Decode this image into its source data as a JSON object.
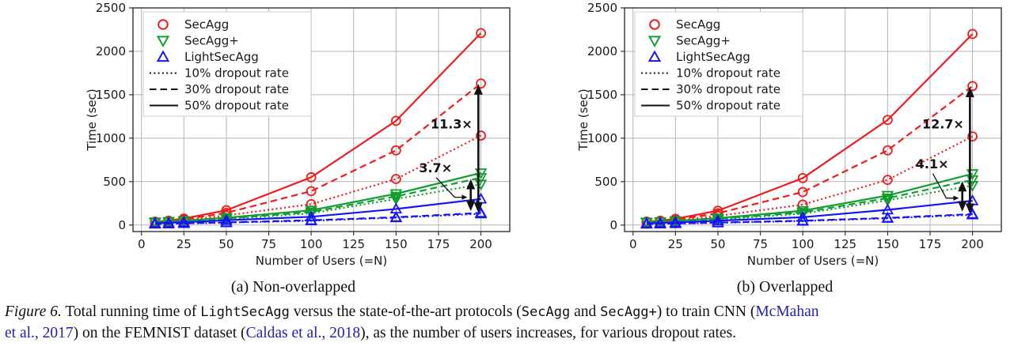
{
  "colors": {
    "red": "#ee1c1c",
    "green": "#109f2e",
    "blue": "#1414f5",
    "citation": "#2222aa",
    "grid": "#b3b3b3",
    "spine": "#333333",
    "annotation": "#111111"
  },
  "figure": {
    "subcaptions": [
      "(a)  Non-overlapped",
      "(b)  Overlapped"
    ],
    "caption_segments": [
      {
        "t": "Figure 6.",
        "s": "italic"
      },
      {
        "t": " Total running time of ",
        "s": "n"
      },
      {
        "t": "LightSecAgg",
        "s": "mono"
      },
      {
        "t": " versus the state-of-the-art protocols (",
        "s": "n"
      },
      {
        "t": "SecAgg",
        "s": "mono"
      },
      {
        "t": " and ",
        "s": "n"
      },
      {
        "t": "SecAgg+",
        "s": "mono"
      },
      {
        "t": ") to train CNN (",
        "s": "n"
      },
      {
        "t": "McMahan",
        "s": "cite"
      },
      {
        "t": "",
        "s": "br"
      },
      {
        "t": "et al., 2017",
        "s": "cite"
      },
      {
        "t": ") on the FEMNIST dataset (",
        "s": "n"
      },
      {
        "t": "Caldas et al., 2018",
        "s": "cite"
      },
      {
        "t": "), as the number of users increases, for various dropout rates.",
        "s": "n"
      }
    ]
  },
  "chart_data": [
    {
      "type": "line",
      "title": "(a) Non-overlapped",
      "xlabel": "Number of Users (=N)",
      "ylabel": "Time (sec)",
      "xlim": [
        -5,
        217
      ],
      "ylim": [
        -75,
        2500
      ],
      "xticks": [
        0,
        25,
        50,
        75,
        100,
        125,
        150,
        175,
        200
      ],
      "yticks": [
        0,
        500,
        1000,
        1500,
        2000,
        2500
      ],
      "grid": true,
      "legend_position": "upper-left",
      "x": [
        8,
        16,
        25,
        50,
        100,
        150,
        200
      ],
      "series": [
        {
          "name": "SecAgg",
          "dropout": "50%",
          "color_key": "red",
          "marker": "circle",
          "dash": "solid",
          "values": [
            40,
            50,
            75,
            170,
            550,
            1200,
            2210
          ]
        },
        {
          "name": "SecAgg",
          "dropout": "30%",
          "color_key": "red",
          "marker": "circle",
          "dash": "dashed",
          "values": [
            35,
            45,
            65,
            140,
            390,
            860,
            1630
          ]
        },
        {
          "name": "SecAgg",
          "dropout": "10%",
          "color_key": "red",
          "marker": "circle",
          "dash": "dotted",
          "values": [
            30,
            40,
            55,
            110,
            240,
            530,
            1030
          ]
        },
        {
          "name": "SecAgg+",
          "dropout": "50%",
          "color_key": "green",
          "marker": "tri-down",
          "dash": "solid",
          "values": [
            35,
            40,
            50,
            85,
            170,
            360,
            600
          ]
        },
        {
          "name": "SecAgg+",
          "dropout": "30%",
          "color_key": "green",
          "marker": "tri-down",
          "dash": "dashed",
          "values": [
            30,
            36,
            45,
            75,
            150,
            330,
            545
          ]
        },
        {
          "name": "SecAgg+",
          "dropout": "10%",
          "color_key": "green",
          "marker": "tri-down",
          "dash": "dotted",
          "values": [
            28,
            33,
            42,
            68,
            135,
            300,
            470
          ]
        },
        {
          "name": "LightSecAgg",
          "dropout": "50%",
          "color_key": "blue",
          "marker": "tri-up",
          "dash": "solid",
          "values": [
            22,
            26,
            32,
            55,
            95,
            185,
            300
          ]
        },
        {
          "name": "LightSecAgg",
          "dropout": "30%",
          "color_key": "blue",
          "marker": "tri-up",
          "dash": "dashed",
          "values": [
            14,
            16,
            20,
            30,
            55,
            90,
            140
          ]
        },
        {
          "name": "LightSecAgg",
          "dropout": "10%",
          "color_key": "blue",
          "marker": "tri-up",
          "dash": "dotted",
          "values": [
            13,
            15,
            18,
            28,
            50,
            85,
            130
          ]
        }
      ],
      "legend": {
        "protocols": [
          {
            "label": "SecAgg",
            "marker": "circle",
            "color_key": "red"
          },
          {
            "label": "SecAgg+",
            "marker": "tri-down",
            "color_key": "green"
          },
          {
            "label": "LightSecAgg",
            "marker": "tri-up",
            "color_key": "blue"
          }
        ],
        "linestyles": [
          {
            "label": "10% dropout rate",
            "dash": "dotted"
          },
          {
            "label": "30% dropout rate",
            "dash": "dashed"
          },
          {
            "label": "50% dropout rate",
            "dash": "solid"
          }
        ]
      },
      "annotations": [
        {
          "label": "11.3×",
          "arrow_x": 198.5,
          "y_top": 1620,
          "y_bottom": 140,
          "label_x": 195,
          "label_y": 1160
        },
        {
          "label": "3.7×",
          "arrow_x": 194,
          "y_top": 530,
          "y_bottom": 160,
          "label_x": 183,
          "label_y": 655,
          "leader_to": [
            192,
            320
          ]
        }
      ]
    },
    {
      "type": "line",
      "title": "(b) Overlapped",
      "xlabel": "Number of Users (=N)",
      "ylabel": "Time (sec)",
      "xlim": [
        -5,
        217
      ],
      "ylim": [
        -75,
        2500
      ],
      "xticks": [
        0,
        25,
        50,
        75,
        100,
        125,
        150,
        175,
        200
      ],
      "yticks": [
        0,
        500,
        1000,
        1500,
        2000,
        2500
      ],
      "grid": true,
      "legend_position": "upper-left",
      "x": [
        8,
        16,
        25,
        50,
        100,
        150,
        200
      ],
      "series": [
        {
          "name": "SecAgg",
          "dropout": "50%",
          "color_key": "red",
          "marker": "circle",
          "dash": "solid",
          "values": [
            40,
            50,
            72,
            165,
            540,
            1210,
            2200
          ]
        },
        {
          "name": "SecAgg",
          "dropout": "30%",
          "color_key": "red",
          "marker": "circle",
          "dash": "dashed",
          "values": [
            35,
            45,
            62,
            135,
            380,
            860,
            1600
          ]
        },
        {
          "name": "SecAgg",
          "dropout": "10%",
          "color_key": "red",
          "marker": "circle",
          "dash": "dotted",
          "values": [
            30,
            40,
            52,
            105,
            235,
            520,
            1020
          ]
        },
        {
          "name": "SecAgg+",
          "dropout": "50%",
          "color_key": "green",
          "marker": "tri-down",
          "dash": "solid",
          "values": [
            33,
            38,
            48,
            80,
            165,
            340,
            590
          ]
        },
        {
          "name": "SecAgg+",
          "dropout": "30%",
          "color_key": "green",
          "marker": "tri-down",
          "dash": "dashed",
          "values": [
            29,
            34,
            43,
            72,
            145,
            310,
            520
          ]
        },
        {
          "name": "SecAgg+",
          "dropout": "10%",
          "color_key": "green",
          "marker": "tri-down",
          "dash": "dotted",
          "values": [
            27,
            32,
            40,
            64,
            130,
            285,
            455
          ]
        },
        {
          "name": "LightSecAgg",
          "dropout": "50%",
          "color_key": "blue",
          "marker": "tri-up",
          "dash": "solid",
          "values": [
            20,
            24,
            30,
            50,
            90,
            175,
            280
          ]
        },
        {
          "name": "LightSecAgg",
          "dropout": "30%",
          "color_key": "blue",
          "marker": "tri-up",
          "dash": "dashed",
          "values": [
            13,
            15,
            18,
            28,
            50,
            82,
            126
          ]
        },
        {
          "name": "LightSecAgg",
          "dropout": "10%",
          "color_key": "blue",
          "marker": "tri-up",
          "dash": "dotted",
          "values": [
            12,
            14,
            17,
            26,
            46,
            78,
            118
          ]
        }
      ],
      "legend": {
        "protocols": [
          {
            "label": "SecAgg",
            "marker": "circle",
            "color_key": "red"
          },
          {
            "label": "SecAgg+",
            "marker": "tri-down",
            "color_key": "green"
          },
          {
            "label": "LightSecAgg",
            "marker": "tri-up",
            "color_key": "blue"
          }
        ],
        "linestyles": [
          {
            "label": "10% dropout rate",
            "dash": "dotted"
          },
          {
            "label": "30% dropout rate",
            "dash": "dashed"
          },
          {
            "label": "50% dropout rate",
            "dash": "solid"
          }
        ]
      },
      "annotations": [
        {
          "label": "12.7×",
          "arrow_x": 198.5,
          "y_top": 1590,
          "y_bottom": 130,
          "label_x": 195,
          "label_y": 1160
        },
        {
          "label": "4.1×",
          "arrow_x": 194,
          "y_top": 505,
          "y_bottom": 155,
          "label_x": 186,
          "label_y": 700,
          "leader_to": [
            192,
            310
          ]
        }
      ]
    }
  ]
}
